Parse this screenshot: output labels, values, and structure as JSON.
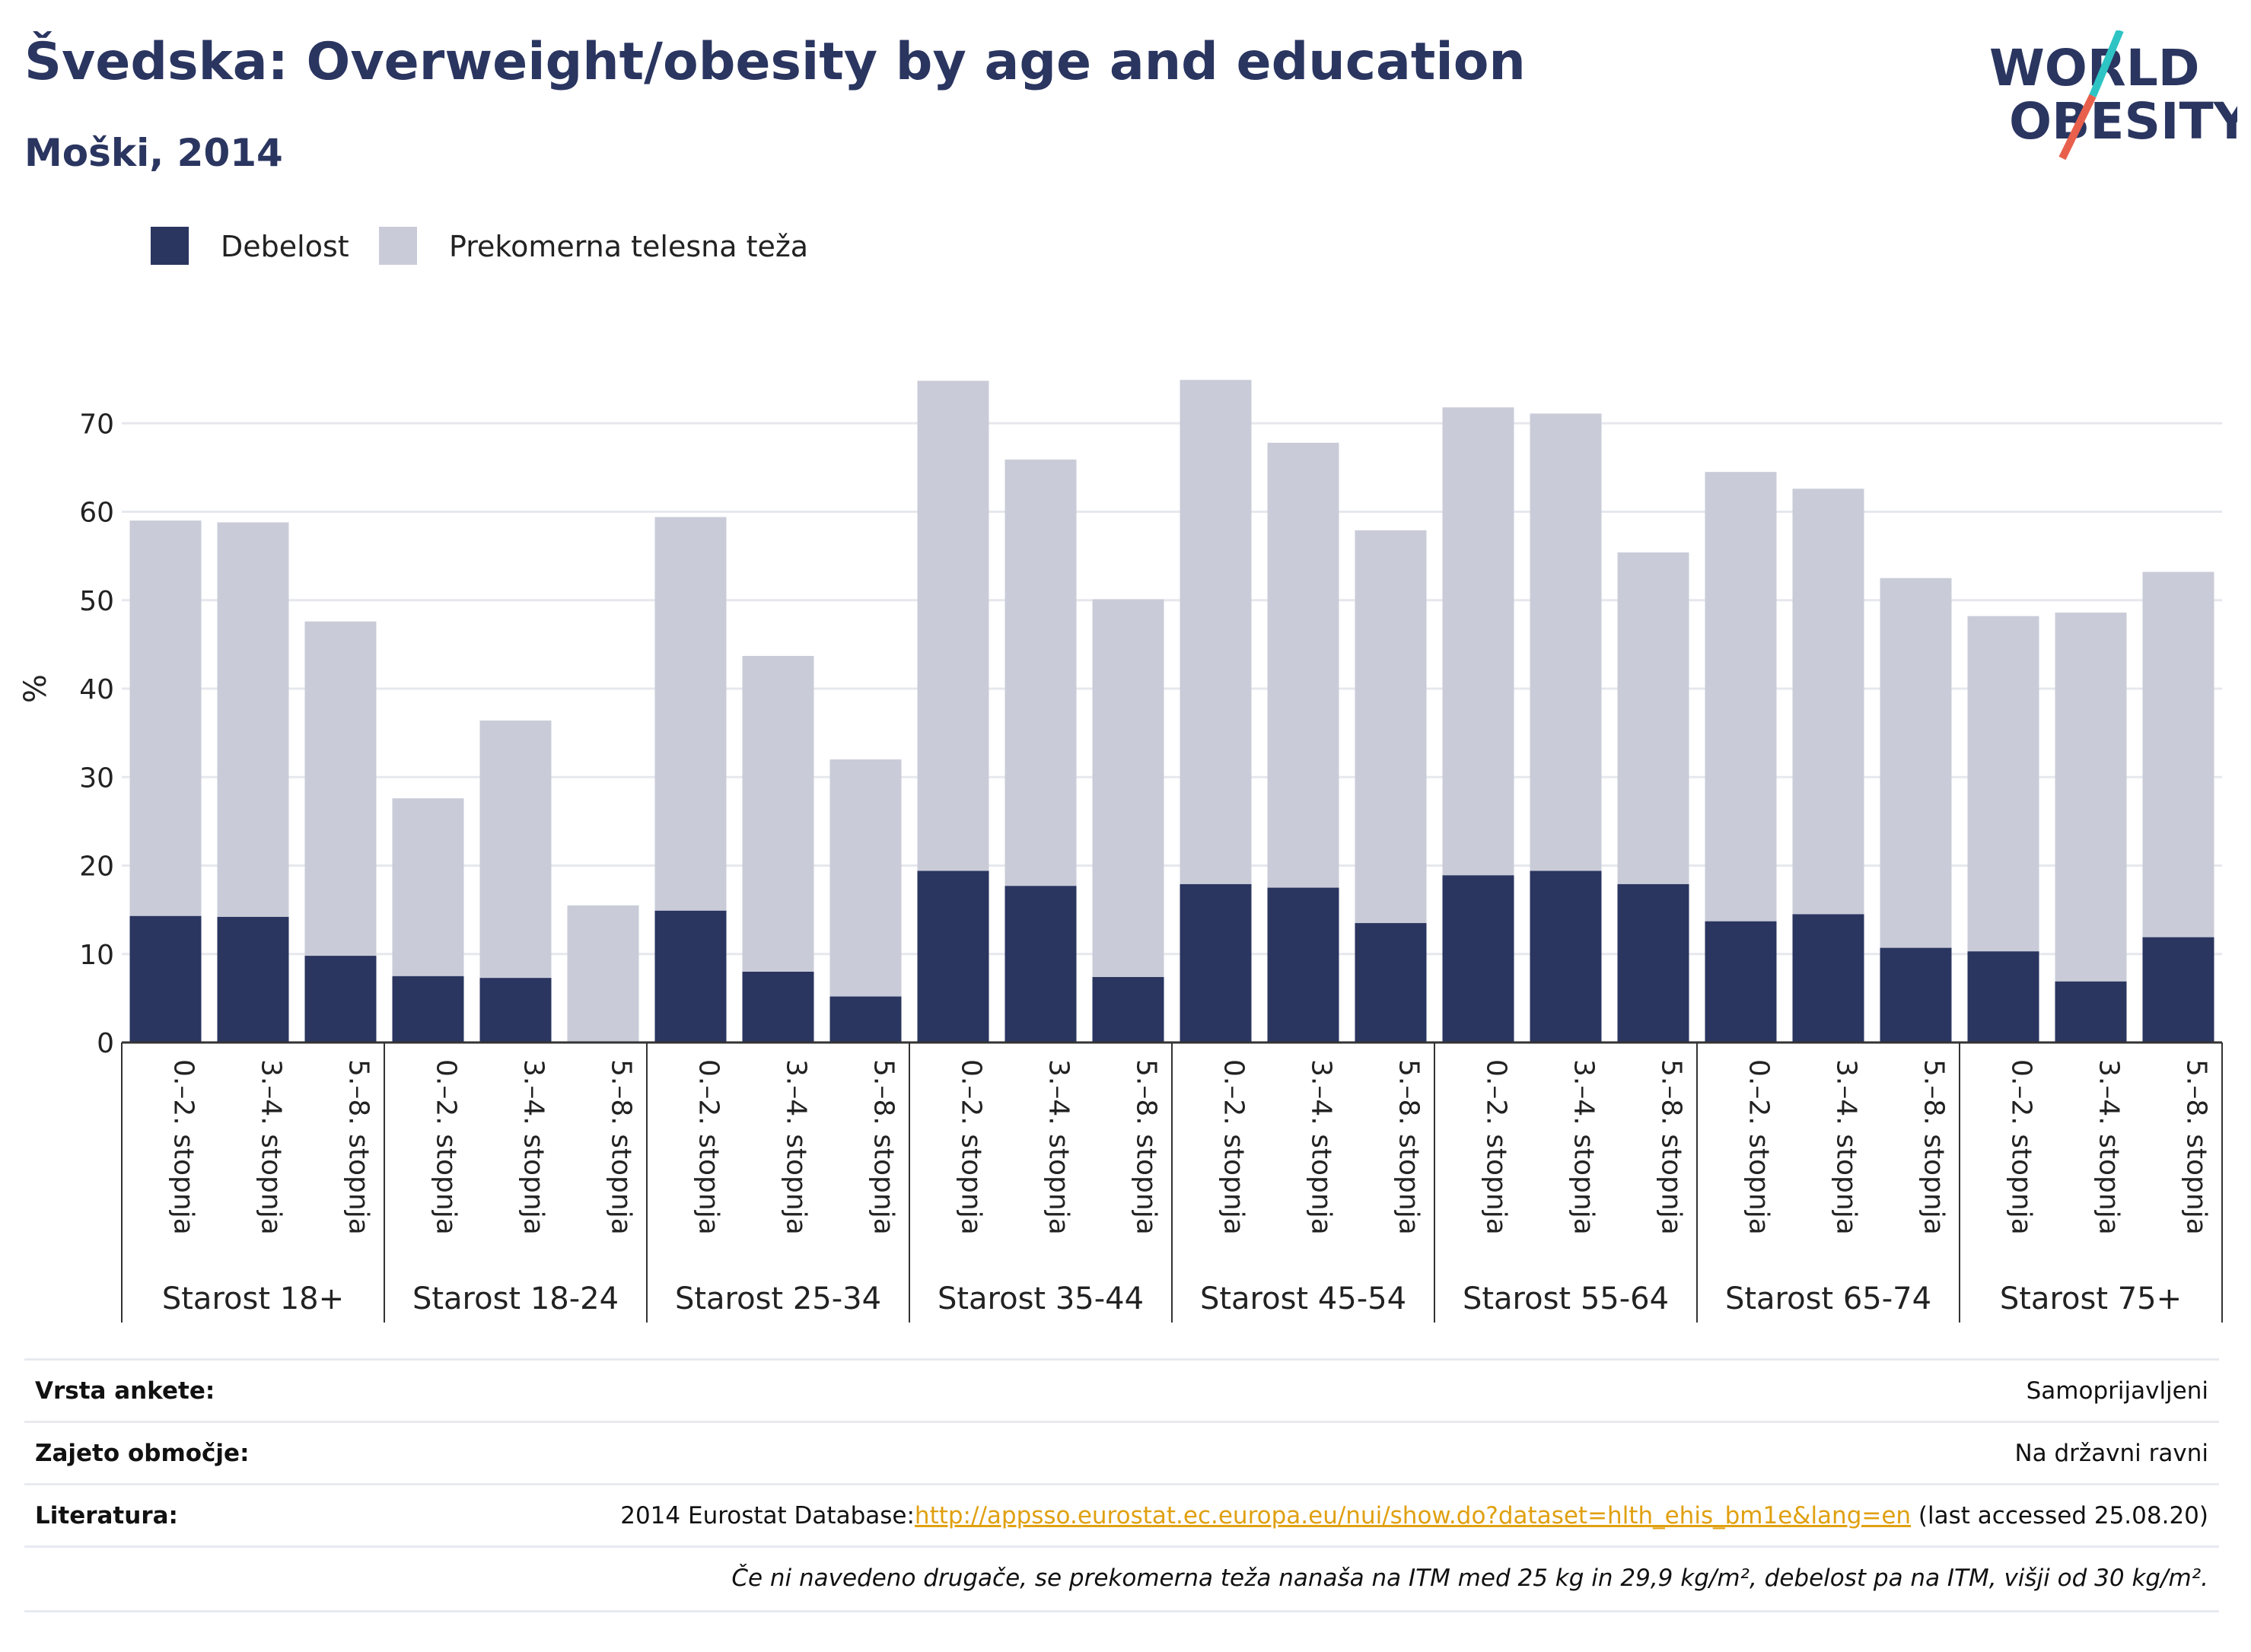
{
  "header": {
    "title": "Švedska: Overweight/obesity by age and education",
    "subtitle": "Moški, 2014"
  },
  "logo": {
    "line1": "WORLD",
    "line2": "OBESITY",
    "accent_teal": "#2ec4c4",
    "accent_red": "#e8604c",
    "text_color": "#2a3560"
  },
  "colors": {
    "obesity": "#2a3560",
    "overweight": "#c9ccd8",
    "grid": "#e6e8ee",
    "axis": "#333333"
  },
  "legend": {
    "obesity_label": "Debelost",
    "overweight_label": "Prekomerna telesna teža"
  },
  "chart_data": {
    "type": "bar",
    "stacked": true,
    "ylabel": "%",
    "ylim": [
      0,
      80
    ],
    "yticks": [
      0,
      10,
      20,
      30,
      40,
      50,
      60,
      70
    ],
    "grid": true,
    "legend_position": "top-left",
    "groups": [
      {
        "label": "Starost 18+",
        "categories": [
          "0.–2. stopnja",
          "3.–4. stopnja",
          "5.–8. stopnja"
        ],
        "obesity": [
          14.3,
          14.2,
          9.8
        ],
        "total": [
          59.0,
          58.8,
          47.6
        ]
      },
      {
        "label": "Starost 18-24",
        "categories": [
          "0.–2. stopnja",
          "3.–4. stopnja",
          "5.–8. stopnja"
        ],
        "obesity": [
          7.5,
          7.3,
          0
        ],
        "total": [
          27.6,
          36.4,
          15.5
        ]
      },
      {
        "label": "Starost 25-34",
        "categories": [
          "0.–2. stopnja",
          "3.–4. stopnja",
          "5.–8. stopnja"
        ],
        "obesity": [
          14.9,
          8.0,
          5.2
        ],
        "total": [
          59.4,
          43.7,
          32.0
        ]
      },
      {
        "label": "Starost 35-44",
        "categories": [
          "0.–2. stopnja",
          "3.–4. stopnja",
          "5.–8. stopnja"
        ],
        "obesity": [
          19.4,
          17.7,
          7.4
        ],
        "total": [
          74.8,
          65.9,
          50.1
        ]
      },
      {
        "label": "Starost 45-54",
        "categories": [
          "0.–2. stopnja",
          "3.–4. stopnja",
          "5.–8. stopnja"
        ],
        "obesity": [
          17.9,
          17.5,
          13.5
        ],
        "total": [
          74.9,
          67.8,
          57.9
        ]
      },
      {
        "label": "Starost 55-64",
        "categories": [
          "0.–2. stopnja",
          "3.–4. stopnja",
          "5.–8. stopnja"
        ],
        "obesity": [
          18.9,
          19.4,
          17.9
        ],
        "total": [
          71.8,
          71.1,
          55.4
        ]
      },
      {
        "label": "Starost 65-74",
        "categories": [
          "0.–2. stopnja",
          "3.–4. stopnja",
          "5.–8. stopnja"
        ],
        "obesity": [
          13.7,
          14.5,
          10.7
        ],
        "total": [
          64.5,
          62.6,
          52.5
        ]
      },
      {
        "label": "Starost 75+",
        "categories": [
          "0.–2. stopnja",
          "3.–4. stopnja",
          "5.–8. stopnja"
        ],
        "obesity": [
          10.3,
          6.9,
          11.9
        ],
        "total": [
          48.2,
          48.6,
          53.2
        ]
      }
    ]
  },
  "info": {
    "survey_label": "Vrsta ankete:",
    "survey_value": "Samoprijavljeni",
    "coverage_label": "Zajeto območje:",
    "coverage_value": "Na državni ravni",
    "reference_label": "Literatura:",
    "reference_prefix": "2014 Eurostat Database:",
    "reference_link": "http://appsso.eurostat.ec.europa.eu/nui/show.do?dataset=hlth_ehis_bm1e&lang=en",
    "reference_suffix": " (last accessed 25.08.20)",
    "note": "Če ni navedeno drugače, se prekomerna teža nanaša na ITM med 25 kg in 29,9 kg/m², debelost pa na ITM, višji od 30 kg/m²."
  }
}
